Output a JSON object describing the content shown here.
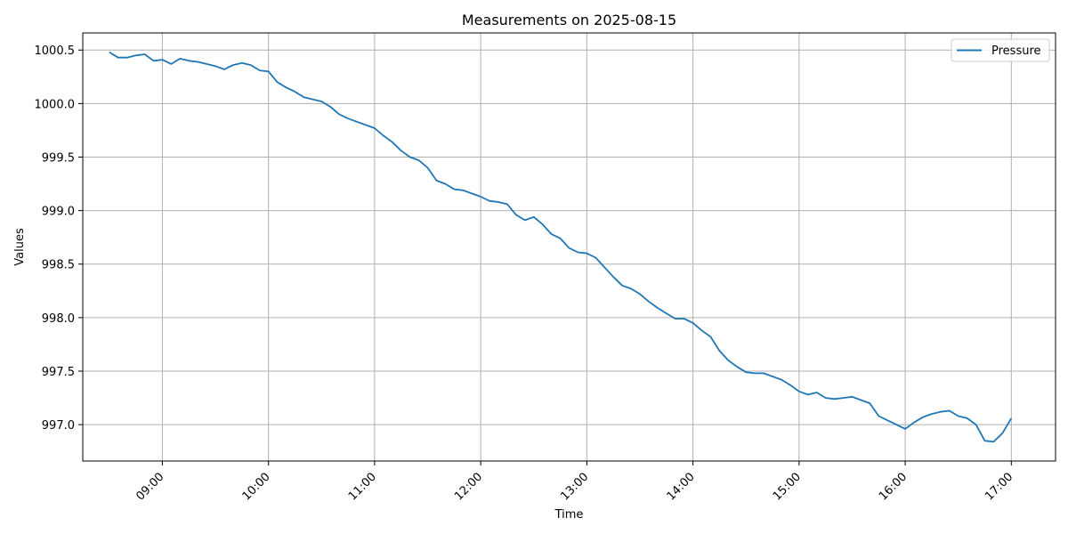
{
  "chart_data": {
    "type": "line",
    "title": "Measurements on 2025-08-15",
    "xlabel": "Time",
    "ylabel": "Values",
    "x_ticks": [
      "09:00",
      "10:00",
      "11:00",
      "12:00",
      "13:00",
      "14:00",
      "15:00",
      "16:00",
      "17:00"
    ],
    "y_ticks": [
      "997.0",
      "997.5",
      "998.0",
      "998.5",
      "999.0",
      "999.5",
      "1000.0",
      "1000.5"
    ],
    "xlim": [
      "08:15",
      "17:25"
    ],
    "ylim": [
      996.66,
      1000.66
    ],
    "grid": true,
    "legend_position": "top-right",
    "series": [
      {
        "name": "Pressure",
        "color": "#1f77b4",
        "x": [
          "08:30",
          "08:35",
          "08:40",
          "08:45",
          "08:50",
          "08:55",
          "09:00",
          "09:05",
          "09:10",
          "09:15",
          "09:20",
          "09:25",
          "09:30",
          "09:35",
          "09:40",
          "09:45",
          "09:50",
          "09:55",
          "10:00",
          "10:05",
          "10:10",
          "10:15",
          "10:20",
          "10:25",
          "10:30",
          "10:35",
          "10:40",
          "10:45",
          "10:50",
          "10:55",
          "11:00",
          "11:05",
          "11:10",
          "11:15",
          "11:20",
          "11:25",
          "11:30",
          "11:35",
          "11:40",
          "11:45",
          "11:50",
          "11:55",
          "12:00",
          "12:05",
          "12:10",
          "12:15",
          "12:20",
          "12:25",
          "12:30",
          "12:35",
          "12:40",
          "12:45",
          "12:50",
          "12:55",
          "13:00",
          "13:05",
          "13:10",
          "13:15",
          "13:20",
          "13:25",
          "13:30",
          "13:35",
          "13:40",
          "13:45",
          "13:50",
          "13:55",
          "14:00",
          "14:05",
          "14:10",
          "14:15",
          "14:20",
          "14:25",
          "14:30",
          "14:35",
          "14:40",
          "14:45",
          "14:50",
          "14:55",
          "15:00",
          "15:05",
          "15:10",
          "15:15",
          "15:20",
          "15:25",
          "15:30",
          "15:35",
          "15:40",
          "15:45",
          "15:50",
          "15:55",
          "16:00",
          "16:05",
          "16:10",
          "16:15",
          "16:20",
          "16:25",
          "16:30",
          "16:35",
          "16:40",
          "16:45",
          "16:50",
          "16:55",
          "17:00"
        ],
        "values": [
          1000.48,
          1000.43,
          1000.43,
          1000.45,
          1000.46,
          1000.4,
          1000.41,
          1000.37,
          1000.42,
          1000.4,
          1000.39,
          1000.37,
          1000.35,
          1000.32,
          1000.36,
          1000.38,
          1000.36,
          1000.31,
          1000.3,
          1000.2,
          1000.15,
          1000.11,
          1000.06,
          1000.04,
          1000.02,
          999.97,
          999.9,
          999.86,
          999.83,
          999.8,
          999.77,
          999.7,
          999.64,
          999.56,
          999.5,
          999.47,
          999.4,
          999.28,
          999.25,
          999.2,
          999.19,
          999.16,
          999.13,
          999.09,
          999.08,
          999.06,
          998.96,
          998.91,
          998.94,
          998.87,
          998.78,
          998.74,
          998.65,
          998.61,
          998.6,
          998.56,
          998.47,
          998.38,
          998.3,
          998.27,
          998.22,
          998.15,
          998.09,
          998.04,
          997.99,
          997.99,
          997.95,
          997.88,
          997.82,
          997.69,
          997.6,
          997.54,
          997.49,
          997.48,
          997.48,
          997.45,
          997.42,
          997.37,
          997.31,
          997.28,
          997.3,
          997.25,
          997.24,
          997.25,
          997.26,
          997.23,
          997.2,
          997.08,
          997.04,
          997.0,
          996.96,
          997.02,
          997.07,
          997.1,
          997.12,
          997.13,
          997.08,
          997.06,
          997.0,
          996.85,
          996.84,
          996.92,
          997.06
        ]
      }
    ]
  }
}
